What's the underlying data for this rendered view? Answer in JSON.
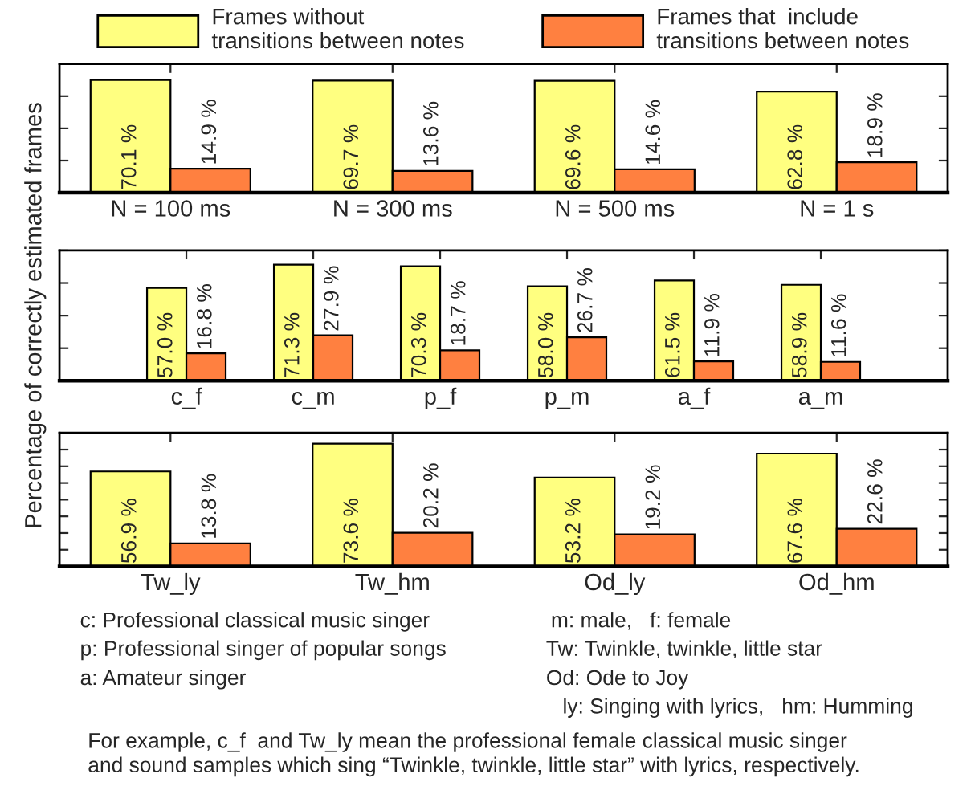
{
  "chart_data": [
    {
      "type": "bar",
      "categories": [
        "N = 100 ms",
        "N = 300 ms",
        "N = 500 ms",
        "N = 1 s"
      ],
      "ylim": [
        0,
        80
      ],
      "yticks": [
        {
          "value": 0,
          "label": null
        },
        {
          "value": 20,
          "label": null
        },
        {
          "value": 40,
          "label": null
        },
        {
          "value": 60,
          "label": null
        },
        {
          "value": 80,
          "label": null
        }
      ],
      "legend": "top",
      "tick_labels": "x",
      "series": [
        {
          "name": "Frames without\ntransitions between notes",
          "color": "#ffff80",
          "values": [
            70.1,
            69.7,
            69.6,
            62.8
          ],
          "value_labels": [
            "70.1 %",
            "69.7 %",
            "69.6 %",
            "62.8 %"
          ]
        },
        {
          "name": "Frames that  include\ntransitions between notes",
          "color": "#ff8040",
          "values": [
            14.9,
            13.6,
            14.6,
            18.9
          ],
          "value_labels": [
            "14.9 %",
            "13.6 %",
            "14.6 %",
            "18.9 %"
          ]
        }
      ]
    },
    {
      "type": "bar",
      "categories": [
        "c_f",
        "c_m",
        "p_f",
        "p_m",
        "a_f",
        "a_m"
      ],
      "ylabel": "Percentage of correctly estimated frames",
      "ylim": [
        0,
        80
      ],
      "yticks": [
        {
          "value": 0,
          "label": null
        },
        {
          "value": 20,
          "label": null
        },
        {
          "value": 40,
          "label": null
        },
        {
          "value": 60,
          "label": null
        },
        {
          "value": 80,
          "label": null
        }
      ],
      "tick_labels": "x",
      "series": [
        {
          "color": "#ffff80",
          "values": [
            57.0,
            71.3,
            70.3,
            58.0,
            61.5,
            58.9
          ],
          "value_labels": [
            "57.0 %",
            "71.3 %",
            "70.3 %",
            "58.0 %",
            "61.5 %",
            "58.9 %"
          ]
        },
        {
          "color": "#ff8040",
          "values": [
            16.8,
            27.9,
            18.7,
            26.7,
            11.9,
            11.6
          ],
          "value_labels": [
            "16.8 %",
            "27.9 %",
            "18.7 %",
            "26.7 %",
            "11.9 %",
            "11.6 %"
          ]
        }
      ]
    },
    {
      "type": "bar",
      "categories": [
        "Tw_ly",
        "Tw_hm",
        "Od_ly",
        "Od_hm"
      ],
      "ylim": [
        0,
        80
      ],
      "yticks": [
        {
          "value": 0,
          "label": null
        },
        {
          "value": 10,
          "label": null
        },
        {
          "value": 20,
          "label": null
        },
        {
          "value": 30,
          "label": null
        },
        {
          "value": 40,
          "label": null
        },
        {
          "value": 50,
          "label": null
        },
        {
          "value": 60,
          "label": null
        },
        {
          "value": 70,
          "label": null
        },
        {
          "value": 80,
          "label": null
        }
      ],
      "tick_labels": "x",
      "series": [
        {
          "color": "#ffff80",
          "values": [
            56.9,
            73.6,
            53.2,
            67.6
          ],
          "value_labels": [
            "56.9 %",
            "73.6 %",
            "53.2 %",
            "67.6 %"
          ]
        },
        {
          "color": "#ff8040",
          "values": [
            13.8,
            20.2,
            19.2,
            22.6
          ],
          "value_labels": [
            "13.8 %",
            "20.2 %",
            "19.2 %",
            "22.6 %"
          ]
        }
      ],
      "annotations": [
        "c: Professional classical music singer",
        "p: Professional singer of popular songs",
        "a: Amateur singer",
        "m: male,   f: female",
        "Tw: Twinkle, twinkle, little star",
        "Od: Ode to Joy",
        "ly: Singing with lyrics,   hm: Humming",
        "For example, c_f  and Tw_ly mean the professional female classical music singer\nand sound samples which sing “Twinkle, twinkle, little star” with lyrics, respectively."
      ]
    }
  ]
}
